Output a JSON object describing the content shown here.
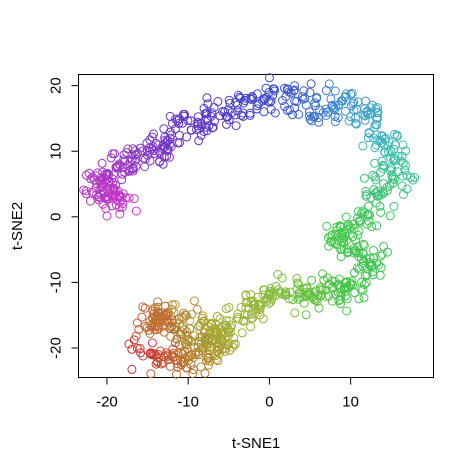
{
  "chart_data": {
    "type": "scatter",
    "title": "",
    "xlabel": "t-SNE1",
    "ylabel": "t-SNE2",
    "xlim": [
      -23.5,
      20.2
    ],
    "ylim": [
      -24.5,
      21.7
    ],
    "xticks": [
      -20,
      -10,
      0,
      10
    ],
    "yticks": [
      -20,
      -10,
      0,
      10,
      20
    ],
    "xtick_labels": [
      "-20",
      "-10",
      "0",
      "10"
    ],
    "ytick_labels": [
      "-20",
      "-10",
      "0",
      "10",
      "20"
    ],
    "grid": false,
    "legend": "none",
    "marker": "open-circle",
    "color_scale": "hue gradient along the curve: red → orange → olive → green → teal → blue → violet → magenta",
    "path": [
      {
        "x": -15.8,
        "y": -20.5,
        "color": "#c83232"
      },
      {
        "x": -13.5,
        "y": -21.5,
        "color": "#c84632"
      },
      {
        "x": -11.5,
        "y": -22.0,
        "color": "#c0602e"
      },
      {
        "x": -9.5,
        "y": -21.8,
        "color": "#b87a2c"
      },
      {
        "x": -7.5,
        "y": -21.0,
        "color": "#ae902a"
      },
      {
        "x": -6.3,
        "y": -19.0,
        "color": "#a8a02c"
      },
      {
        "x": -6.8,
        "y": -17.0,
        "color": "#a6a82e"
      },
      {
        "x": -9.0,
        "y": -15.5,
        "color": "#aaa030"
      },
      {
        "x": -11.5,
        "y": -14.5,
        "color": "#b88a30"
      },
      {
        "x": -13.5,
        "y": -14.8,
        "color": "#c07030"
      },
      {
        "x": -15.2,
        "y": -16.5,
        "color": "#c45a30"
      },
      {
        "x": -12.5,
        "y": -17.0,
        "color": "#b87030"
      },
      {
        "x": -9.5,
        "y": -19.0,
        "color": "#aa9030"
      },
      {
        "x": -7.0,
        "y": -19.5,
        "color": "#a2a234"
      },
      {
        "x": -5.0,
        "y": -17.5,
        "color": "#9eae34"
      },
      {
        "x": -3.0,
        "y": -14.0,
        "color": "#9cb438"
      },
      {
        "x": -1.0,
        "y": -12.5,
        "color": "#92b83a"
      },
      {
        "x": 1.5,
        "y": -11.5,
        "color": "#80bc3c"
      },
      {
        "x": 3.5,
        "y": -10.5,
        "color": "#6cc03e"
      },
      {
        "x": 5.5,
        "y": -13.0,
        "color": "#5cc240"
      },
      {
        "x": 7.5,
        "y": -10.5,
        "color": "#50c444"
      },
      {
        "x": 9.5,
        "y": -11.5,
        "color": "#46c44a"
      },
      {
        "x": 11.5,
        "y": -9.0,
        "color": "#42c450"
      },
      {
        "x": 12.8,
        "y": -6.0,
        "color": "#40c456"
      },
      {
        "x": 10.0,
        "y": -5.0,
        "color": "#44c650"
      },
      {
        "x": 8.5,
        "y": -3.0,
        "color": "#48c84c"
      },
      {
        "x": 11.0,
        "y": -1.0,
        "color": "#42c658"
      },
      {
        "x": 13.0,
        "y": 1.5,
        "color": "#3ec464"
      },
      {
        "x": 14.5,
        "y": 4.5,
        "color": "#3cc27a"
      },
      {
        "x": 15.5,
        "y": 7.5,
        "color": "#3cc096"
      },
      {
        "x": 15.0,
        "y": 10.5,
        "color": "#3cbab2"
      },
      {
        "x": 13.0,
        "y": 13.5,
        "color": "#3caec4"
      },
      {
        "x": 11.0,
        "y": 16.5,
        "color": "#3c9cca"
      },
      {
        "x": 8.5,
        "y": 18.5,
        "color": "#3c88cc"
      },
      {
        "x": 6.0,
        "y": 15.5,
        "color": "#3c74cc"
      },
      {
        "x": 4.0,
        "y": 18.5,
        "color": "#3c62cc"
      },
      {
        "x": 1.5,
        "y": 18.8,
        "color": "#3c52cc"
      },
      {
        "x": -1.5,
        "y": 17.5,
        "color": "#3e44ca"
      },
      {
        "x": -4.5,
        "y": 16.5,
        "color": "#4a3cc6"
      },
      {
        "x": -7.5,
        "y": 15.5,
        "color": "#5438c4"
      },
      {
        "x": -10.0,
        "y": 14.0,
        "color": "#6036c4"
      },
      {
        "x": -12.5,
        "y": 11.5,
        "color": "#6e36c4"
      },
      {
        "x": -15.0,
        "y": 9.5,
        "color": "#8036c4"
      },
      {
        "x": -17.0,
        "y": 8.5,
        "color": "#9036c4"
      },
      {
        "x": -19.5,
        "y": 7.0,
        "color": "#a236c4"
      },
      {
        "x": -21.0,
        "y": 4.5,
        "color": "#b436c4"
      },
      {
        "x": -19.5,
        "y": 3.0,
        "color": "#c036c4"
      },
      {
        "x": -18.0,
        "y": 2.0,
        "color": "#c83ac8"
      }
    ],
    "n_points": 1000
  }
}
